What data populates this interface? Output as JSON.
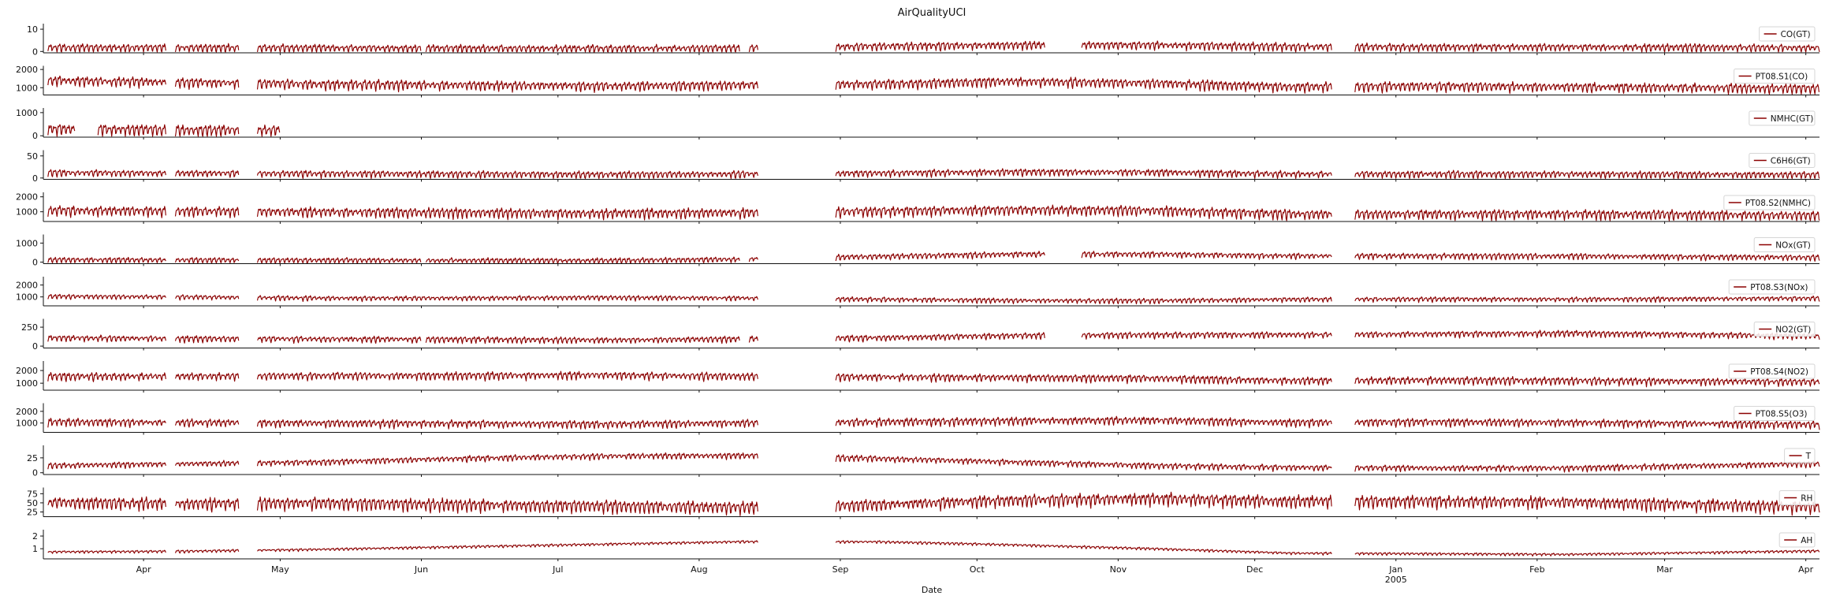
{
  "chart_data": {
    "type": "line",
    "title": "AirQualityUCI",
    "xlabel": "Date",
    "x_range": [
      "2004-03-10",
      "2005-04-04"
    ],
    "x_ticks": [
      {
        "date": "2004-04-01",
        "label": "Apr"
      },
      {
        "date": "2004-05-01",
        "label": "May"
      },
      {
        "date": "2004-06-01",
        "label": "Jun"
      },
      {
        "date": "2004-07-01",
        "label": "Jul"
      },
      {
        "date": "2004-08-01",
        "label": "Aug"
      },
      {
        "date": "2004-09-01",
        "label": "Sep"
      },
      {
        "date": "2004-10-01",
        "label": "Oct"
      },
      {
        "date": "2004-11-01",
        "label": "Nov"
      },
      {
        "date": "2004-12-01",
        "label": "Dec"
      },
      {
        "date": "2005-01-01",
        "label": "Jan",
        "sublabel": "2005"
      },
      {
        "date": "2005-02-01",
        "label": "Feb"
      },
      {
        "date": "2005-03-01",
        "label": "Mar"
      },
      {
        "date": "2005-04-01",
        "label": "Apr"
      }
    ],
    "line_color": "#8b0000",
    "legend_location": "right",
    "grid": false,
    "series": [
      {
        "name": "CO(GT)",
        "ylim": [
          -0.6,
          12.5
        ],
        "yticks": [
          0,
          10
        ],
        "base": 2.1,
        "daily_amp": 1.8,
        "seasonal": [
          1.8,
          1.7,
          1.6,
          1.4,
          1.3,
          1.5,
          2.4,
          2.9,
          3.0,
          2.2,
          2.0,
          2.0,
          1.8
        ],
        "outages": [
          [
            "2004-03-10",
            "2004-03-11"
          ],
          [
            "2004-04-06",
            "2004-04-08"
          ],
          [
            "2004-04-22",
            "2004-04-26"
          ],
          [
            "2004-06-01",
            "2004-06-02"
          ],
          [
            "2004-08-10",
            "2004-08-12"
          ],
          [
            "2004-08-14",
            "2004-08-31"
          ],
          [
            "2004-10-16",
            "2004-10-24"
          ],
          [
            "2004-12-18",
            "2004-12-23"
          ]
        ]
      },
      {
        "name": "PT08.S1(CO)",
        "ylim": [
          600,
          2200
        ],
        "yticks": [
          1000,
          2000
        ],
        "base": 1100,
        "daily_amp": 260,
        "seasonal": [
          1400,
          1300,
          1200,
          1150,
          1100,
          1150,
          1200,
          1350,
          1250,
          1050,
          1100,
          1050,
          1000
        ],
        "outages": [
          [
            "2004-03-10",
            "2004-03-11"
          ],
          [
            "2004-04-06",
            "2004-04-08"
          ],
          [
            "2004-04-22",
            "2004-04-26"
          ],
          [
            "2004-08-14",
            "2004-08-31"
          ],
          [
            "2004-12-18",
            "2004-12-23"
          ]
        ]
      },
      {
        "name": "NMHC(GT)",
        "ylim": [
          -60,
          1200
        ],
        "yticks": [
          0,
          1000
        ],
        "base": 250,
        "daily_amp": 250,
        "seasonal": [
          300,
          250,
          250,
          250,
          250,
          250,
          250,
          250,
          250,
          250,
          250,
          250,
          250
        ],
        "outages": [
          [
            "2004-03-10",
            "2004-03-11"
          ],
          [
            "2004-03-17",
            "2004-03-22"
          ],
          [
            "2004-04-06",
            "2004-04-08"
          ],
          [
            "2004-04-22",
            "2004-04-26"
          ],
          [
            "2004-05-01",
            "2005-04-04"
          ]
        ]
      },
      {
        "name": "C6H6(GT)",
        "ylim": [
          -3,
          63
        ],
        "yticks": [
          0,
          50
        ],
        "base": 10,
        "daily_amp": 8,
        "seasonal": [
          12,
          11,
          10,
          9,
          8,
          9,
          11,
          14,
          13,
          9,
          9,
          9,
          8
        ],
        "outages": [
          [
            "2004-03-10",
            "2004-03-11"
          ],
          [
            "2004-04-06",
            "2004-04-08"
          ],
          [
            "2004-04-22",
            "2004-04-26"
          ],
          [
            "2004-08-14",
            "2004-08-31"
          ],
          [
            "2004-12-18",
            "2004-12-23"
          ]
        ]
      },
      {
        "name": "PT08.S2(NMHC)",
        "ylim": [
          350,
          2300
        ],
        "yticks": [
          1000,
          2000
        ],
        "base": 950,
        "daily_amp": 330,
        "seasonal": [
          1100,
          1050,
          1000,
          950,
          900,
          950,
          1050,
          1150,
          1100,
          850,
          850,
          850,
          800
        ],
        "outages": [
          [
            "2004-03-10",
            "2004-03-11"
          ],
          [
            "2004-04-06",
            "2004-04-08"
          ],
          [
            "2004-04-22",
            "2004-04-26"
          ],
          [
            "2004-08-14",
            "2004-08-31"
          ],
          [
            "2004-12-18",
            "2004-12-23"
          ]
        ]
      },
      {
        "name": "NOx(GT)",
        "ylim": [
          -80,
          1450
        ],
        "yticks": [
          0,
          1000
        ],
        "base": 150,
        "daily_amp": 150,
        "seasonal": [
          120,
          110,
          100,
          90,
          80,
          150,
          300,
          420,
          420,
          330,
          330,
          320,
          280
        ],
        "outages": [
          [
            "2004-03-10",
            "2004-03-11"
          ],
          [
            "2004-04-06",
            "2004-04-08"
          ],
          [
            "2004-04-22",
            "2004-04-26"
          ],
          [
            "2004-06-01",
            "2004-06-02"
          ],
          [
            "2004-08-10",
            "2004-08-12"
          ],
          [
            "2004-08-14",
            "2004-08-31"
          ],
          [
            "2004-10-16",
            "2004-10-24"
          ],
          [
            "2004-12-18",
            "2004-12-23"
          ]
        ]
      },
      {
        "name": "PT08.S3(NOx)",
        "ylim": [
          250,
          2700
        ],
        "yticks": [
          1000,
          2000
        ],
        "base": 850,
        "daily_amp": 200,
        "seasonal": [
          1050,
          1000,
          900,
          900,
          950,
          900,
          800,
          700,
          680,
          800,
          820,
          800,
          850
        ],
        "outages": [
          [
            "2004-03-10",
            "2004-03-11"
          ],
          [
            "2004-04-06",
            "2004-04-08"
          ],
          [
            "2004-04-22",
            "2004-04-26"
          ],
          [
            "2004-08-14",
            "2004-08-31"
          ],
          [
            "2004-12-18",
            "2004-12-23"
          ]
        ]
      },
      {
        "name": "NO2(GT)",
        "ylim": [
          -25,
          360
        ],
        "yticks": [
          0,
          250
        ],
        "base": 100,
        "daily_amp": 40,
        "seasonal": [
          110,
          100,
          95,
          90,
          80,
          95,
          110,
          140,
          150,
          150,
          160,
          170,
          150
        ],
        "outages": [
          [
            "2004-03-10",
            "2004-03-11"
          ],
          [
            "2004-04-06",
            "2004-04-08"
          ],
          [
            "2004-04-22",
            "2004-04-26"
          ],
          [
            "2004-06-01",
            "2004-06-02"
          ],
          [
            "2004-08-10",
            "2004-08-12"
          ],
          [
            "2004-08-14",
            "2004-08-31"
          ],
          [
            "2004-10-16",
            "2004-10-24"
          ],
          [
            "2004-12-18",
            "2004-12-23"
          ]
        ]
      },
      {
        "name": "PT08.S4(NO2)",
        "ylim": [
          450,
          2750
        ],
        "yticks": [
          1000,
          2000
        ],
        "base": 1500,
        "daily_amp": 300,
        "seasonal": [
          1550,
          1550,
          1600,
          1600,
          1650,
          1550,
          1500,
          1450,
          1400,
          1200,
          1250,
          1200,
          1150
        ],
        "outages": [
          [
            "2004-03-10",
            "2004-03-11"
          ],
          [
            "2004-04-06",
            "2004-04-08"
          ],
          [
            "2004-04-22",
            "2004-04-26"
          ],
          [
            "2004-08-14",
            "2004-08-31"
          ],
          [
            "2004-12-18",
            "2004-12-23"
          ]
        ]
      },
      {
        "name": "PT08.S5(O3)",
        "ylim": [
          200,
          2700
        ],
        "yticks": [
          1000,
          2000
        ],
        "base": 1000,
        "daily_amp": 330,
        "seasonal": [
          1100,
          1050,
          1000,
          950,
          900,
          1000,
          1100,
          1200,
          1250,
          1050,
          1100,
          1050,
          950
        ],
        "outages": [
          [
            "2004-03-10",
            "2004-03-11"
          ],
          [
            "2004-04-06",
            "2004-04-08"
          ],
          [
            "2004-04-22",
            "2004-04-26"
          ],
          [
            "2004-08-14",
            "2004-08-31"
          ],
          [
            "2004-12-18",
            "2004-12-23"
          ]
        ]
      },
      {
        "name": "T",
        "ylim": [
          -3,
          46
        ],
        "yticks": [
          0,
          25
        ],
        "base": 18,
        "daily_amp": 5,
        "seasonal": [
          12,
          15,
          18,
          24,
          28,
          29,
          24,
          18,
          12,
          9,
          8,
          8,
          12
        ],
        "outages": [
          [
            "2004-03-10",
            "2004-03-11"
          ],
          [
            "2004-04-06",
            "2004-04-08"
          ],
          [
            "2004-04-22",
            "2004-04-26"
          ],
          [
            "2004-08-14",
            "2004-08-31"
          ],
          [
            "2004-12-18",
            "2004-12-23"
          ]
        ]
      },
      {
        "name": "RH",
        "ylim": [
          12,
          92
        ],
        "yticks": [
          25,
          50,
          75
        ],
        "base": 50,
        "daily_amp": 17,
        "seasonal": [
          52,
          48,
          50,
          45,
          42,
          38,
          45,
          58,
          62,
          55,
          55,
          52,
          45
        ],
        "outages": [
          [
            "2004-03-10",
            "2004-03-11"
          ],
          [
            "2004-04-06",
            "2004-04-08"
          ],
          [
            "2004-04-22",
            "2004-04-26"
          ],
          [
            "2004-08-14",
            "2004-08-31"
          ],
          [
            "2004-12-18",
            "2004-12-23"
          ]
        ]
      },
      {
        "name": "AH",
        "ylim": [
          0.2,
          2.5
        ],
        "yticks": [
          1,
          2
        ],
        "base": 1.0,
        "daily_amp": 0.1,
        "seasonal": [
          0.75,
          0.8,
          0.95,
          1.15,
          1.35,
          1.55,
          1.55,
          1.3,
          1.0,
          0.65,
          0.6,
          0.55,
          0.7
        ],
        "outages": [
          [
            "2004-03-10",
            "2004-03-11"
          ],
          [
            "2004-04-06",
            "2004-04-08"
          ],
          [
            "2004-04-22",
            "2004-04-26"
          ],
          [
            "2004-08-14",
            "2004-08-31"
          ],
          [
            "2004-12-18",
            "2004-12-23"
          ]
        ]
      }
    ]
  }
}
